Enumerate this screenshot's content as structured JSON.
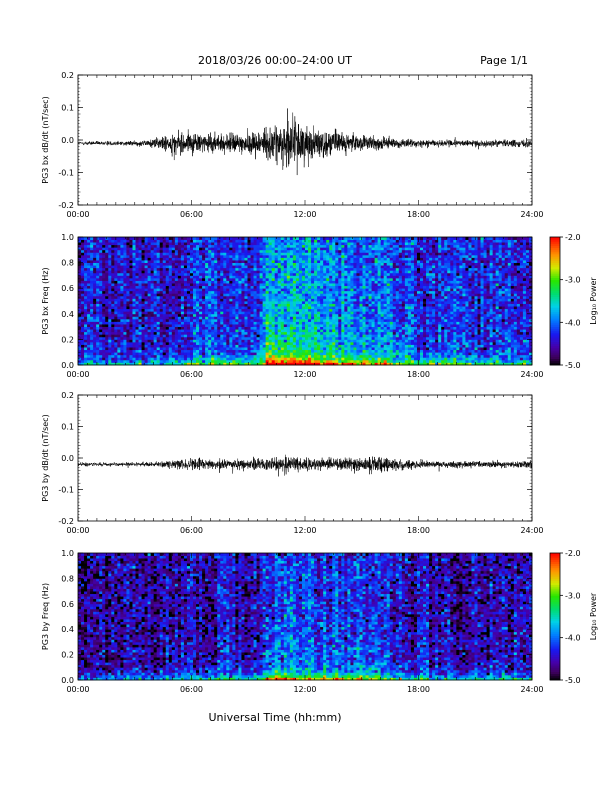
{
  "header": {
    "title": "2018/03/26  00:00–24:00 UT",
    "page": "Page 1/1"
  },
  "footer": {
    "xlabel": "Universal Time (hh:mm)"
  },
  "chart_data": [
    {
      "type": "line",
      "panel": "bx-waveform",
      "ylabel": "PG3 bx dB/dt (nT/sec)",
      "xlim": [
        "00:00",
        "24:00"
      ],
      "ylim": [
        -0.2,
        0.2
      ],
      "x_ticks": [
        "00:00",
        "06:00",
        "12:00",
        "18:00",
        "24:00"
      ],
      "y_ticks": [
        "-0.2",
        "-0.1",
        "0.0",
        "0.1",
        "0.2"
      ],
      "y_tick_values": [
        -0.2,
        -0.1,
        0.0,
        0.1,
        0.2
      ],
      "baseline": -0.01,
      "activity_envelope": {
        "x_hours": [
          0,
          3,
          4,
          5,
          6,
          7,
          8,
          9,
          10,
          11,
          11.5,
          12,
          13,
          14,
          15,
          16,
          17,
          18,
          20,
          22,
          24
        ],
        "amplitude": [
          0.005,
          0.006,
          0.012,
          0.025,
          0.028,
          0.022,
          0.025,
          0.03,
          0.04,
          0.055,
          0.065,
          0.05,
          0.035,
          0.025,
          0.02,
          0.018,
          0.012,
          0.01,
          0.008,
          0.008,
          0.01
        ]
      }
    },
    {
      "type": "heatmap",
      "panel": "bx-spectrogram",
      "ylabel": "PG3 bx Freq (Hz)",
      "xlim": [
        "00:00",
        "24:00"
      ],
      "ylim": [
        0.0,
        1.0
      ],
      "x_ticks": [
        "00:00",
        "06:00",
        "12:00",
        "18:00",
        "24:00"
      ],
      "y_ticks": [
        "0.0",
        "0.2",
        "0.4",
        "0.6",
        "0.8",
        "1.0"
      ],
      "y_tick_values": [
        0.0,
        0.2,
        0.4,
        0.6,
        0.8,
        1.0
      ],
      "colorbar": {
        "label": "Log₁₀ Power",
        "range": [
          -5.0,
          -2.0
        ],
        "ticks": [
          "-2.0",
          "-3.0",
          "-4.0",
          "-5.0"
        ],
        "tick_values": [
          -2.0,
          -3.0,
          -4.0,
          -5.0
        ]
      },
      "background_log_power": -4.5,
      "activity_profile": {
        "x_hours": [
          0,
          2,
          4,
          6,
          8,
          9.8,
          10,
          11,
          12,
          13,
          14,
          15,
          16,
          17,
          18,
          20,
          22,
          24
        ],
        "boost": [
          0.1,
          0.1,
          0.2,
          0.45,
          0.45,
          0.5,
          1.4,
          1.35,
          1.2,
          1.05,
          0.95,
          0.9,
          0.8,
          0.55,
          0.45,
          0.35,
          0.3,
          0.3
        ]
      }
    },
    {
      "type": "line",
      "panel": "by-waveform",
      "ylabel": "PG3 by dB/dt (nT/sec)",
      "xlim": [
        "00:00",
        "24:00"
      ],
      "ylim": [
        -0.2,
        0.2
      ],
      "x_ticks": [
        "00:00",
        "06:00",
        "12:00",
        "18:00",
        "24:00"
      ],
      "y_ticks": [
        "-0.2",
        "-0.1",
        "0.0",
        "0.1",
        "0.2"
      ],
      "y_tick_values": [
        -0.2,
        -0.1,
        0.0,
        0.1,
        0.2
      ],
      "baseline": -0.02,
      "activity_envelope": {
        "x_hours": [
          0,
          3,
          4,
          5,
          6,
          7,
          8,
          9,
          10,
          11,
          12,
          13,
          14,
          15,
          16,
          17,
          18,
          20,
          22,
          24
        ],
        "amplitude": [
          0.005,
          0.005,
          0.006,
          0.012,
          0.015,
          0.012,
          0.012,
          0.014,
          0.018,
          0.022,
          0.018,
          0.014,
          0.016,
          0.022,
          0.026,
          0.014,
          0.01,
          0.008,
          0.008,
          0.01
        ]
      }
    },
    {
      "type": "heatmap",
      "panel": "by-spectrogram",
      "ylabel": "PG3 by Freq (Hz)",
      "xlim": [
        "00:00",
        "24:00"
      ],
      "ylim": [
        0.0,
        1.0
      ],
      "x_ticks": [
        "00:00",
        "06:00",
        "12:00",
        "18:00",
        "24:00"
      ],
      "y_ticks": [
        "0.0",
        "0.2",
        "0.4",
        "0.6",
        "0.8",
        "1.0"
      ],
      "y_tick_values": [
        0.0,
        0.2,
        0.4,
        0.6,
        0.8,
        1.0
      ],
      "colorbar": {
        "label": "Log₁₀ Power",
        "range": [
          -5.0,
          -2.0
        ],
        "ticks": [
          "-2.0",
          "-3.0",
          "-4.0",
          "-5.0"
        ],
        "tick_values": [
          -2.0,
          -3.0,
          -4.0,
          -5.0
        ]
      },
      "background_log_power": -4.7,
      "activity_profile": {
        "x_hours": [
          0,
          2,
          4,
          6,
          8,
          9.8,
          10,
          11,
          12,
          13,
          14,
          15,
          16,
          17,
          18,
          20,
          22,
          24
        ],
        "boost": [
          0.05,
          0.05,
          0.15,
          0.3,
          0.3,
          0.35,
          1.0,
          0.95,
          0.85,
          0.8,
          0.8,
          0.8,
          0.65,
          0.45,
          0.35,
          0.3,
          0.25,
          0.25
        ]
      }
    }
  ]
}
